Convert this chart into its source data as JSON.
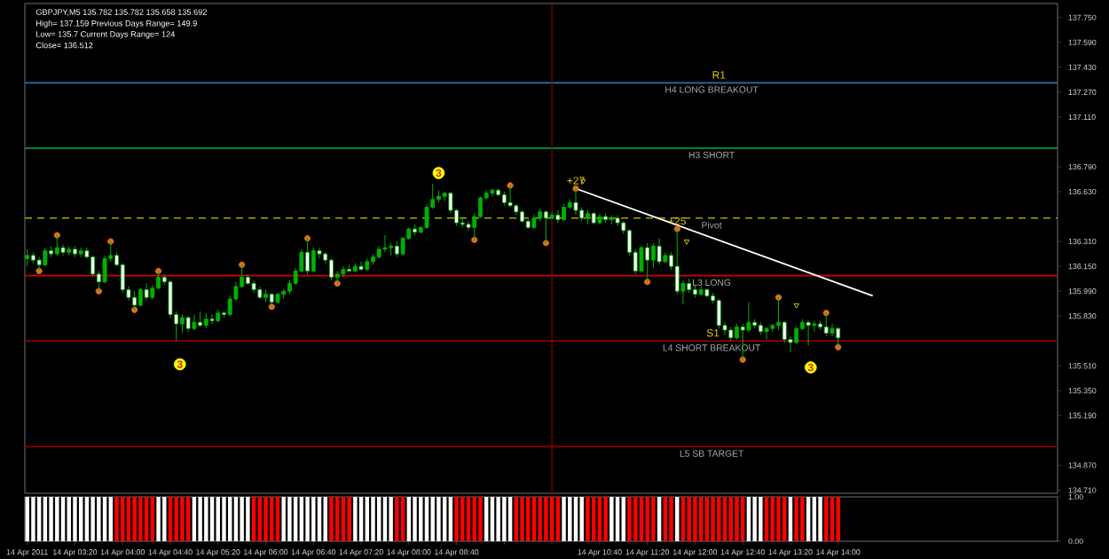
{
  "chart_data": [
    {
      "type": "candlestick",
      "color": "#00b000",
      "x": [
        "2011-04-14T02:40",
        "2011-04-14T02:45",
        "2011-04-14T02:50",
        "2011-04-14T02:55",
        "2011-04-14T03:00",
        "2011-04-14T03:05",
        "2011-04-14T03:10",
        "2011-04-14T03:15",
        "2011-04-14T03:20",
        "2011-04-14T03:25",
        "2011-04-14T03:30",
        "2011-04-14T03:35",
        "2011-04-14T03:40",
        "2011-04-14T03:45",
        "2011-04-14T03:50",
        "2011-04-14T03:55",
        "2011-04-14T04:00",
        "2011-04-14T04:05",
        "2011-04-14T04:10",
        "2011-04-14T04:15",
        "2011-04-14T04:20",
        "2011-04-14T04:25",
        "2011-04-14T04:30",
        "2011-04-14T04:35",
        "2011-04-14T04:40",
        "2011-04-14T04:45",
        "2011-04-14T04:50",
        "2011-04-14T04:55",
        "2011-04-14T05:00",
        "2011-04-14T05:05",
        "2011-04-14T05:10",
        "2011-04-14T05:15",
        "2011-04-14T05:20",
        "2011-04-14T05:25",
        "2011-04-14T05:30",
        "2011-04-14T05:35",
        "2011-04-14T05:40",
        "2011-04-14T05:45",
        "2011-04-14T05:50",
        "2011-04-14T05:55",
        "2011-04-14T06:00",
        "2011-04-14T06:05",
        "2011-04-14T06:10",
        "2011-04-14T06:15",
        "2011-04-14T06:20",
        "2011-04-14T06:25",
        "2011-04-14T06:30",
        "2011-04-14T06:35",
        "2011-04-14T06:40",
        "2011-04-14T06:45",
        "2011-04-14T06:50",
        "2011-04-14T06:55",
        "2011-04-14T07:00",
        "2011-04-14T07:05",
        "2011-04-14T07:10",
        "2011-04-14T07:15",
        "2011-04-14T07:20",
        "2011-04-14T07:25",
        "2011-04-14T07:30",
        "2011-04-14T07:35",
        "2011-04-14T07:40",
        "2011-04-14T07:45",
        "2011-04-14T07:50",
        "2011-04-14T07:55",
        "2011-04-14T08:00",
        "2011-04-14T08:05",
        "2011-04-14T08:10",
        "2011-04-14T08:15",
        "2011-04-14T08:20",
        "2011-04-14T08:25",
        "2011-04-14T08:30",
        "2011-04-14T08:35",
        "2011-04-14T08:40",
        "2011-04-14T08:45",
        "2011-04-14T08:50",
        "2011-04-14T08:55",
        "2011-04-14T09:00",
        "2011-04-14T09:05",
        "2011-04-14T09:10",
        "2011-04-14T09:15",
        "2011-04-14T09:20",
        "2011-04-14T09:25",
        "2011-04-14T09:30",
        "2011-04-14T09:35",
        "2011-04-14T09:40",
        "2011-04-14T09:45",
        "2011-04-14T09:50",
        "2011-04-14T09:55",
        "2011-04-14T10:00",
        "2011-04-14T10:05",
        "2011-04-14T10:10",
        "2011-04-14T10:15",
        "2011-04-14T10:20",
        "2011-04-14T10:25",
        "2011-04-14T10:30",
        "2011-04-14T10:35",
        "2011-04-14T10:40",
        "2011-04-14T10:45",
        "2011-04-14T10:50",
        "2011-04-14T10:55",
        "2011-04-14T11:00",
        "2011-04-14T11:05",
        "2011-04-14T11:10",
        "2011-04-14T11:15",
        "2011-04-14T11:20",
        "2011-04-14T11:25",
        "2011-04-14T11:30",
        "2011-04-14T11:35",
        "2011-04-14T11:40",
        "2011-04-14T11:45",
        "2011-04-14T11:50",
        "2011-04-14T11:55",
        "2011-04-14T12:00",
        "2011-04-14T12:05",
        "2011-04-14T12:10",
        "2011-04-14T12:15",
        "2011-04-14T12:20",
        "2011-04-14T12:25",
        "2011-04-14T12:30",
        "2011-04-14T12:35",
        "2011-04-14T12:40",
        "2011-04-14T12:45",
        "2011-04-14T12:50",
        "2011-04-14T12:55",
        "2011-04-14T13:00",
        "2011-04-14T13:05",
        "2011-04-14T13:10",
        "2011-04-14T13:15",
        "2011-04-14T13:20",
        "2011-04-14T13:25",
        "2011-04-14T13:30",
        "2011-04-14T13:35",
        "2011-04-14T13:40",
        "2011-04-14T13:45",
        "2011-04-14T13:50",
        "2011-04-14T13:55",
        "2011-04-14T14:00"
      ],
      "ohlc": [
        [
          136.2,
          136.26,
          136.15,
          136.22
        ],
        [
          136.22,
          136.24,
          136.17,
          136.19
        ],
        [
          136.19,
          136.21,
          136.12,
          136.16
        ],
        [
          136.16,
          136.27,
          136.15,
          136.25
        ],
        [
          136.25,
          136.28,
          136.21,
          136.23
        ],
        [
          136.23,
          136.35,
          136.22,
          136.27
        ],
        [
          136.27,
          136.29,
          136.22,
          136.24
        ],
        [
          136.24,
          136.28,
          136.22,
          136.26
        ],
        [
          136.26,
          136.28,
          136.21,
          136.23
        ],
        [
          136.23,
          136.27,
          136.21,
          136.25
        ],
        [
          136.25,
          136.27,
          136.2,
          136.21
        ],
        [
          136.21,
          136.22,
          136.08,
          136.1
        ],
        [
          136.1,
          136.12,
          135.99,
          136.05
        ],
        [
          136.05,
          136.22,
          136.04,
          136.2
        ],
        [
          136.2,
          136.31,
          136.18,
          136.22
        ],
        [
          136.22,
          136.24,
          136.15,
          136.16
        ],
        [
          136.16,
          136.17,
          135.98,
          136.0
        ],
        [
          136.0,
          136.02,
          135.93,
          135.95
        ],
        [
          135.95,
          135.99,
          135.87,
          135.9
        ],
        [
          135.9,
          136.01,
          135.89,
          136.0
        ],
        [
          136.0,
          136.04,
          135.93,
          135.95
        ],
        [
          135.95,
          136.03,
          135.94,
          136.01
        ],
        [
          136.01,
          136.12,
          136.0,
          136.08
        ],
        [
          136.08,
          136.1,
          136.03,
          136.05
        ],
        [
          136.05,
          136.06,
          135.82,
          135.84
        ],
        [
          135.84,
          135.86,
          135.67,
          135.78
        ],
        [
          135.78,
          135.84,
          135.72,
          135.82
        ],
        [
          135.82,
          135.83,
          135.73,
          135.75
        ],
        [
          135.75,
          135.84,
          135.74,
          135.79
        ],
        [
          135.79,
          135.86,
          135.76,
          135.77
        ],
        [
          135.77,
          135.85,
          135.75,
          135.81
        ],
        [
          135.81,
          135.84,
          135.78,
          135.8
        ],
        [
          135.8,
          135.87,
          135.79,
          135.85
        ],
        [
          135.85,
          135.86,
          135.82,
          135.84
        ],
        [
          135.84,
          135.96,
          135.83,
          135.94
        ],
        [
          135.94,
          136.05,
          135.93,
          136.02
        ],
        [
          136.02,
          136.16,
          136.01,
          136.08
        ],
        [
          136.08,
          136.1,
          136.03,
          136.04
        ],
        [
          136.04,
          136.06,
          135.98,
          136.0
        ],
        [
          136.0,
          136.02,
          135.94,
          135.95
        ],
        [
          135.95,
          136.0,
          135.92,
          135.97
        ],
        [
          135.97,
          135.98,
          135.89,
          135.92
        ],
        [
          135.92,
          135.98,
          135.91,
          135.97
        ],
        [
          135.97,
          136.0,
          135.94,
          135.99
        ],
        [
          135.99,
          136.06,
          135.97,
          136.04
        ],
        [
          136.04,
          136.14,
          136.03,
          136.12
        ],
        [
          136.12,
          136.26,
          136.11,
          136.24
        ],
        [
          136.24,
          136.33,
          136.1,
          136.12
        ],
        [
          136.12,
          136.27,
          136.11,
          136.25
        ],
        [
          136.25,
          136.27,
          136.2,
          136.23
        ],
        [
          136.23,
          136.24,
          136.17,
          136.19
        ],
        [
          136.19,
          136.2,
          136.06,
          136.08
        ],
        [
          136.08,
          136.12,
          136.04,
          136.1
        ],
        [
          136.1,
          136.15,
          136.08,
          136.13
        ],
        [
          136.13,
          136.16,
          136.11,
          136.12
        ],
        [
          136.12,
          136.17,
          136.11,
          136.15
        ],
        [
          136.15,
          136.18,
          136.12,
          136.13
        ],
        [
          136.13,
          136.2,
          136.12,
          136.18
        ],
        [
          136.18,
          136.23,
          136.16,
          136.21
        ],
        [
          136.21,
          136.28,
          136.2,
          136.26
        ],
        [
          136.26,
          136.35,
          136.24,
          136.27
        ],
        [
          136.27,
          136.3,
          136.22,
          136.28
        ],
        [
          136.28,
          136.31,
          136.21,
          136.23
        ],
        [
          136.23,
          136.34,
          136.22,
          136.33
        ],
        [
          136.33,
          136.4,
          136.32,
          136.39
        ],
        [
          136.39,
          136.42,
          136.35,
          136.37
        ],
        [
          136.37,
          136.41,
          136.36,
          136.4
        ],
        [
          136.4,
          136.55,
          136.39,
          136.53
        ],
        [
          136.53,
          136.68,
          136.52,
          136.58
        ],
        [
          136.58,
          136.64,
          136.56,
          136.6
        ],
        [
          136.6,
          136.63,
          136.57,
          136.62
        ],
        [
          136.62,
          136.63,
          136.49,
          136.51
        ],
        [
          136.51,
          136.52,
          136.41,
          136.43
        ],
        [
          136.43,
          136.46,
          136.4,
          136.42
        ],
        [
          136.42,
          136.44,
          136.38,
          136.4
        ],
        [
          136.4,
          136.49,
          136.32,
          136.47
        ],
        [
          136.47,
          136.6,
          136.46,
          136.59
        ],
        [
          136.59,
          136.64,
          136.58,
          136.62
        ],
        [
          136.62,
          136.65,
          136.6,
          136.64
        ],
        [
          136.64,
          136.65,
          136.6,
          136.61
        ],
        [
          136.61,
          136.63,
          136.54,
          136.56
        ],
        [
          136.56,
          136.67,
          136.53,
          136.54
        ],
        [
          136.54,
          136.55,
          136.48,
          136.5
        ],
        [
          136.5,
          136.51,
          136.43,
          136.44
        ],
        [
          136.44,
          136.45,
          136.39,
          136.4
        ],
        [
          136.4,
          136.48,
          136.39,
          136.46
        ],
        [
          136.46,
          136.52,
          136.44,
          136.5
        ],
        [
          136.5,
          136.51,
          136.3,
          136.46
        ],
        [
          136.46,
          136.5,
          136.45,
          136.48
        ],
        [
          136.48,
          136.51,
          136.43,
          136.45
        ],
        [
          136.45,
          136.55,
          136.44,
          136.53
        ],
        [
          136.53,
          136.58,
          136.52,
          136.56
        ],
        [
          136.56,
          136.65,
          136.48,
          136.51
        ],
        [
          136.51,
          136.53,
          136.44,
          136.46
        ],
        [
          136.46,
          136.51,
          136.42,
          136.49
        ],
        [
          136.49,
          136.5,
          136.42,
          136.43
        ],
        [
          136.43,
          136.49,
          136.42,
          136.47
        ],
        [
          136.47,
          136.49,
          136.43,
          136.45
        ],
        [
          136.45,
          136.48,
          136.42,
          136.46
        ],
        [
          136.46,
          136.48,
          136.41,
          136.43
        ],
        [
          136.43,
          136.44,
          136.36,
          136.38
        ],
        [
          136.38,
          136.39,
          136.22,
          136.24
        ],
        [
          136.24,
          136.26,
          136.1,
          136.12
        ],
        [
          136.12,
          136.28,
          136.11,
          136.27
        ],
        [
          136.27,
          136.3,
          136.05,
          136.19
        ],
        [
          136.19,
          136.3,
          136.14,
          136.28
        ],
        [
          136.28,
          136.33,
          136.16,
          136.18
        ],
        [
          136.18,
          136.24,
          136.17,
          136.22
        ],
        [
          136.22,
          136.24,
          136.13,
          136.15
        ],
        [
          136.15,
          136.39,
          135.97,
          135.99
        ],
        [
          135.99,
          136.06,
          135.91,
          136.04
        ],
        [
          136.04,
          136.07,
          135.98,
          136.0
        ],
        [
          136.0,
          136.03,
          135.95,
          135.97
        ],
        [
          135.97,
          136.02,
          135.96,
          136.0
        ],
        [
          136.0,
          136.01,
          135.95,
          135.96
        ],
        [
          135.96,
          135.98,
          135.91,
          135.93
        ],
        [
          135.93,
          135.94,
          135.75,
          135.77
        ],
        [
          135.77,
          135.79,
          135.71,
          135.74
        ],
        [
          135.74,
          135.76,
          135.67,
          135.69
        ],
        [
          135.69,
          135.78,
          135.68,
          135.76
        ],
        [
          135.76,
          135.78,
          135.55,
          135.74
        ],
        [
          135.74,
          135.92,
          135.73,
          135.79
        ],
        [
          135.79,
          135.81,
          135.75,
          135.77
        ],
        [
          135.77,
          135.79,
          135.71,
          135.73
        ],
        [
          135.73,
          135.76,
          135.68,
          135.75
        ],
        [
          135.75,
          135.78,
          135.73,
          135.77
        ],
        [
          135.77,
          135.95,
          135.74,
          135.79
        ],
        [
          135.79,
          135.8,
          135.66,
          135.68
        ],
        [
          135.68,
          135.7,
          135.6,
          135.66
        ],
        [
          135.66,
          135.76,
          135.65,
          135.75
        ],
        [
          135.75,
          135.81,
          135.74,
          135.79
        ],
        [
          135.79,
          135.8,
          135.64,
          135.77
        ],
        [
          135.77,
          135.8,
          135.73,
          135.78
        ],
        [
          135.78,
          135.8,
          135.74,
          135.76
        ],
        [
          135.76,
          135.85,
          135.7,
          135.72
        ],
        [
          135.72,
          135.78,
          135.7,
          135.75
        ],
        [
          135.75,
          135.76,
          135.63,
          135.69
        ]
      ],
      "series": [
        {
          "type": "scatter",
          "color": "#e0701c",
          "marker": "circle",
          "x": [
            "2011-04-14T02:50",
            "2011-04-14T03:05",
            "2011-04-14T03:40",
            "2011-04-14T03:50",
            "2011-04-14T04:10",
            "2011-04-14T04:30",
            "2011-04-14T05:40",
            "2011-04-14T06:05",
            "2011-04-14T06:35",
            "2011-04-14T07:00",
            "2011-04-14T08:55",
            "2011-04-14T09:25",
            "2011-04-14T09:55",
            "2011-04-14T10:20",
            "2011-04-14T11:20",
            "2011-04-14T11:45",
            "2011-04-14T12:40",
            "2011-04-14T13:10",
            "2011-04-14T13:50",
            "2011-04-14T14:00"
          ],
          "values": [
            136.12,
            136.35,
            135.99,
            136.31,
            135.87,
            136.12,
            136.16,
            135.89,
            136.33,
            136.04,
            136.32,
            136.67,
            136.3,
            136.65,
            136.05,
            136.39,
            135.55,
            135.95,
            135.85,
            135.63
          ]
        },
        {
          "type": "scatter",
          "color": "#ffff00",
          "marker": "circle",
          "x": [
            "2011-04-14T04:48",
            "2011-04-14T08:25",
            "2011-04-14T13:37"
          ],
          "values": [
            135.52,
            136.75,
            135.5
          ]
        },
        {
          "type": "scatter",
          "color": "#d8c000",
          "marker": "triangle",
          "x": [
            "2011-04-14T10:26",
            "2011-04-14T11:53",
            "2011-04-14T13:25"
          ],
          "values": [
            136.7,
            136.31,
            135.9
          ]
        },
        {
          "type": "line",
          "color": "#ffffff",
          "x": [
            "2011-04-14T10:20",
            "2011-04-14T14:29"
          ],
          "values": [
            136.65,
            135.96
          ]
        }
      ],
      "xlim": [
        "2011-04-14T02:38",
        "2011-04-14T17:04"
      ],
      "ylim": [
        134.69,
        137.84
      ],
      "yticks": [
        {
          "value": 137.75,
          "label": "137.750"
        },
        {
          "value": 137.59,
          "label": "137.590"
        },
        {
          "value": 137.43,
          "label": "137.430"
        },
        {
          "value": 137.27,
          "label": "137.270"
        },
        {
          "value": 137.11,
          "label": "137.110"
        },
        {
          "value": 136.79,
          "label": "136.790"
        },
        {
          "value": 136.63,
          "label": "136.630"
        },
        {
          "value": 136.31,
          "label": "136.310"
        },
        {
          "value": 136.15,
          "label": "136.150"
        },
        {
          "value": 135.99,
          "label": "135.990"
        },
        {
          "value": 135.83,
          "label": "135.830"
        },
        {
          "value": 135.51,
          "label": "135.510"
        },
        {
          "value": 135.35,
          "label": "135.350"
        },
        {
          "value": 135.19,
          "label": "135.190"
        },
        {
          "value": 134.87,
          "label": "134.870"
        },
        {
          "value": 134.71,
          "label": "134.710"
        }
      ],
      "tick_labels": "y",
      "ref_lines": [
        {
          "axis": "y",
          "value": 137.33,
          "label": "H4 LONG BREAKOUT",
          "color": "#2f6fa8"
        },
        {
          "axis": "y",
          "value": 136.91,
          "label": "H3 SHORT",
          "color": "#00b050"
        },
        {
          "axis": "y",
          "value": 136.46,
          "label": "Pivot",
          "color": "#b0a000",
          "line_style": "dashed"
        },
        {
          "axis": "y",
          "value": 136.09,
          "label": "L3 LONG",
          "color": "#d00000"
        },
        {
          "axis": "y",
          "value": 135.67,
          "label": "L4 SHORT BREAKOUT",
          "color": "#a00000"
        },
        {
          "axis": "y",
          "value": 134.99,
          "label": "L5 SB TARGET",
          "color": "#900000"
        },
        {
          "axis": "x",
          "value": "2011-04-14T10:00",
          "color": "#800000"
        }
      ],
      "annotations": [
        "GBPJPY,M5  135.782 135.782 135.658 135.692",
        "High= 137.159   Previous Days Range= 149.9",
        "Low= 135.7   Current Days Range= 124",
        "Close= 136.512",
        {
          "text": "R1",
          "x": "2011-04-14T12:20",
          "y": 137.33
        },
        {
          "text": "S1",
          "x": "2011-04-14T12:15",
          "y": 135.67
        },
        {
          "text": "+27",
          "x": "2011-04-14T10:20",
          "y": 136.65
        },
        {
          "text": "+25",
          "x": "2011-04-14T11:45",
          "y": 136.39
        },
        {
          "text": "3",
          "x": "2011-04-14T04:48",
          "y": 135.52
        },
        {
          "text": "3",
          "x": "2011-04-14T08:25",
          "y": 136.75
        },
        {
          "text": "3",
          "x": "2011-04-14T13:37",
          "y": 135.5
        }
      ]
    },
    {
      "type": "bar",
      "x": [
        "2011-04-14T02:40",
        "2011-04-14T02:45",
        "2011-04-14T02:50",
        "2011-04-14T02:55",
        "2011-04-14T03:00",
        "2011-04-14T03:05",
        "2011-04-14T03:10",
        "2011-04-14T03:15",
        "2011-04-14T03:20",
        "2011-04-14T03:25",
        "2011-04-14T03:30",
        "2011-04-14T03:35",
        "2011-04-14T03:40",
        "2011-04-14T03:45",
        "2011-04-14T03:50",
        "2011-04-14T03:55",
        "2011-04-14T04:00",
        "2011-04-14T04:05",
        "2011-04-14T04:10",
        "2011-04-14T04:15",
        "2011-04-14T04:20",
        "2011-04-14T04:25",
        "2011-04-14T04:30",
        "2011-04-14T04:35",
        "2011-04-14T04:40",
        "2011-04-14T04:45",
        "2011-04-14T04:50",
        "2011-04-14T04:55",
        "2011-04-14T05:00",
        "2011-04-14T05:05",
        "2011-04-14T05:10",
        "2011-04-14T05:15",
        "2011-04-14T05:20",
        "2011-04-14T05:25",
        "2011-04-14T05:30",
        "2011-04-14T05:35",
        "2011-04-14T05:40",
        "2011-04-14T05:45",
        "2011-04-14T05:50",
        "2011-04-14T05:55",
        "2011-04-14T06:00",
        "2011-04-14T06:05",
        "2011-04-14T06:10",
        "2011-04-14T06:15",
        "2011-04-14T06:20",
        "2011-04-14T06:25",
        "2011-04-14T06:30",
        "2011-04-14T06:35",
        "2011-04-14T06:40",
        "2011-04-14T06:45",
        "2011-04-14T06:50",
        "2011-04-14T06:55",
        "2011-04-14T07:00",
        "2011-04-14T07:05",
        "2011-04-14T07:10",
        "2011-04-14T07:15",
        "2011-04-14T07:20",
        "2011-04-14T07:25",
        "2011-04-14T07:30",
        "2011-04-14T07:35",
        "2011-04-14T07:40",
        "2011-04-14T07:45",
        "2011-04-14T07:50",
        "2011-04-14T07:55",
        "2011-04-14T08:00",
        "2011-04-14T08:05",
        "2011-04-14T08:10",
        "2011-04-14T08:15",
        "2011-04-14T08:20",
        "2011-04-14T08:25",
        "2011-04-14T08:30",
        "2011-04-14T08:35",
        "2011-04-14T08:40",
        "2011-04-14T08:45",
        "2011-04-14T08:50",
        "2011-04-14T08:55",
        "2011-04-14T09:00",
        "2011-04-14T09:05",
        "2011-04-14T09:10",
        "2011-04-14T09:15",
        "2011-04-14T09:20",
        "2011-04-14T09:25",
        "2011-04-14T09:30",
        "2011-04-14T09:35",
        "2011-04-14T09:40",
        "2011-04-14T09:45",
        "2011-04-14T09:50",
        "2011-04-14T09:55",
        "2011-04-14T10:00",
        "2011-04-14T10:05",
        "2011-04-14T10:10",
        "2011-04-14T10:15",
        "2011-04-14T10:20",
        "2011-04-14T10:25",
        "2011-04-14T10:30",
        "2011-04-14T10:35",
        "2011-04-14T10:40",
        "2011-04-14T10:45",
        "2011-04-14T10:50",
        "2011-04-14T10:55",
        "2011-04-14T11:00",
        "2011-04-14T11:05",
        "2011-04-14T11:10",
        "2011-04-14T11:15",
        "2011-04-14T11:20",
        "2011-04-14T11:25",
        "2011-04-14T11:30",
        "2011-04-14T11:35",
        "2011-04-14T11:40",
        "2011-04-14T11:45",
        "2011-04-14T11:50",
        "2011-04-14T11:55",
        "2011-04-14T12:00",
        "2011-04-14T12:05",
        "2011-04-14T12:10",
        "2011-04-14T12:15",
        "2011-04-14T12:20",
        "2011-04-14T12:25",
        "2011-04-14T12:30",
        "2011-04-14T12:35",
        "2011-04-14T12:40",
        "2011-04-14T12:45",
        "2011-04-14T12:50",
        "2011-04-14T12:55",
        "2011-04-14T13:00",
        "2011-04-14T13:05",
        "2011-04-14T13:10",
        "2011-04-14T13:15",
        "2011-04-14T13:20",
        "2011-04-14T13:25",
        "2011-04-14T13:30",
        "2011-04-14T13:35",
        "2011-04-14T13:40",
        "2011-04-14T13:45",
        "2011-04-14T13:50",
        "2011-04-14T13:55",
        "2011-04-14T14:00"
      ],
      "values": [
        1,
        1,
        1,
        1,
        1,
        1,
        1,
        1,
        1,
        1,
        1,
        1,
        1,
        1,
        1,
        1,
        1,
        1,
        1,
        1,
        1,
        1,
        1,
        1,
        1,
        1,
        1,
        1,
        1,
        1,
        1,
        1,
        1,
        1,
        1,
        1,
        1,
        1,
        1,
        1,
        1,
        1,
        1,
        1,
        1,
        1,
        1,
        1,
        1,
        1,
        1,
        1,
        1,
        1,
        1,
        1,
        1,
        1,
        1,
        1,
        1,
        1,
        1,
        1,
        1,
        1,
        1,
        1,
        1,
        1,
        1,
        1,
        1,
        1,
        1,
        1,
        1,
        1,
        1,
        1,
        1,
        1,
        1,
        1,
        1,
        1,
        1,
        1,
        1,
        1,
        1,
        1,
        1,
        1,
        1,
        1,
        1,
        1,
        1,
        1,
        1,
        1,
        1,
        1,
        1,
        1,
        1,
        1,
        1,
        1,
        1,
        1,
        1,
        1,
        1,
        1,
        1,
        1,
        1,
        1,
        1,
        1,
        1,
        1,
        1,
        1,
        1,
        1,
        1,
        1,
        1,
        1,
        1,
        1,
        1,
        1,
        1
      ],
      "colors": [
        "#ffffff",
        "#ffffff",
        "#ffffff",
        "#ffffff",
        "#ffffff",
        "#ffffff",
        "#ffffff",
        "#ffffff",
        "#ffffff",
        "#ffffff",
        "#ffffff",
        "#ffffff",
        "#ffffff",
        "#ffffff",
        "#ffffff",
        "#ff0000",
        "#ff0000",
        "#ff0000",
        "#ff0000",
        "#ff0000",
        "#ff0000",
        "#ff0000",
        "#ffffff",
        "#ffffff",
        "#ff0000",
        "#ff0000",
        "#ff0000",
        "#ff0000",
        "#ffffff",
        "#ffffff",
        "#ffffff",
        "#ffffff",
        "#ffffff",
        "#ffffff",
        "#ffffff",
        "#ffffff",
        "#ffffff",
        "#ffffff",
        "#ff0000",
        "#ff0000",
        "#ff0000",
        "#ff0000",
        "#ff0000",
        "#ffffff",
        "#ffffff",
        "#ffffff",
        "#ffffff",
        "#ffffff",
        "#ffffff",
        "#ffffff",
        "#ffffff",
        "#ff0000",
        "#ff0000",
        "#ff0000",
        "#ff0000",
        "#ffffff",
        "#ffffff",
        "#ffffff",
        "#ffffff",
        "#ffffff",
        "#ffffff",
        "#ffffff",
        "#ff0000",
        "#ff0000",
        "#ffffff",
        "#ffffff",
        "#ffffff",
        "#ffffff",
        "#ffffff",
        "#ffffff",
        "#ffffff",
        "#ffffff",
        "#ff0000",
        "#ff0000",
        "#ff0000",
        "#ff0000",
        "#ff0000",
        "#ffffff",
        "#ffffff",
        "#ffffff",
        "#ffffff",
        "#ffffff",
        "#ff0000",
        "#ff0000",
        "#ff0000",
        "#ff0000",
        "#ff0000",
        "#ff0000",
        "#ff0000",
        "#ff0000",
        "#ffffff",
        "#ffffff",
        "#ffffff",
        "#ffffff",
        "#ff0000",
        "#ff0000",
        "#ff0000",
        "#ff0000",
        "#ffffff",
        "#ffffff",
        "#ffffff",
        "#ff0000",
        "#ff0000",
        "#ff0000",
        "#ff0000",
        "#ff0000",
        "#ffffff",
        "#ff0000",
        "#ff0000",
        "#ffffff",
        "#ff0000",
        "#ff0000",
        "#ff0000",
        "#ff0000",
        "#ff0000",
        "#ff0000",
        "#ff0000",
        "#ff0000",
        "#ff0000",
        "#ff0000",
        "#ff0000",
        "#ffffff",
        "#ffffff",
        "#ffffff",
        "#ff0000",
        "#ff0000",
        "#ff0000",
        "#ff0000",
        "#ffffff",
        "#ff0000",
        "#ff0000",
        "#ffffff",
        "#ffffff",
        "#ffffff",
        "#ff0000",
        "#ff0000",
        "#ff0000"
      ],
      "xlim": [
        "2011-04-14T02:38",
        "2011-04-14T17:04"
      ],
      "ylim": [
        0,
        1
      ],
      "yticks": [
        {
          "value": 1,
          "label": "1.00"
        },
        {
          "value": 0,
          "label": "0.00"
        }
      ],
      "xticks": [
        {
          "value": "2011-04-14T02:40",
          "label": "14 Apr 2011"
        },
        {
          "value": "2011-04-14T03:20",
          "label": "14 Apr 03:20"
        },
        {
          "value": "2011-04-14T04:00",
          "label": "14 Apr 04:00"
        },
        {
          "value": "2011-04-14T04:40",
          "label": "14 Apr 04:40"
        },
        {
          "value": "2011-04-14T05:20",
          "label": "14 Apr 05:20"
        },
        {
          "value": "2011-04-14T06:00",
          "label": "14 Apr 06:00"
        },
        {
          "value": "2011-04-14T06:40",
          "label": "14 Apr 06:40"
        },
        {
          "value": "2011-04-14T07:20",
          "label": "14 Apr 07:20"
        },
        {
          "value": "2011-04-14T08:00",
          "label": "14 Apr 08:00"
        },
        {
          "value": "2011-04-14T08:40",
          "label": "14 Apr 08:40"
        },
        {
          "value": "2011-04-14T09:20",
          "label": null
        },
        {
          "value": "2011-04-14T10:00",
          "label": null
        },
        {
          "value": "2011-04-14T10:40",
          "label": "14 Apr 10:40"
        },
        {
          "value": "2011-04-14T11:20",
          "label": "14 Apr 11:20"
        },
        {
          "value": "2011-04-14T12:00",
          "label": "14 Apr 12:00"
        },
        {
          "value": "2011-04-14T12:40",
          "label": "14 Apr 12:40"
        },
        {
          "value": "2011-04-14T13:20",
          "label": "14 Apr 13:20"
        },
        {
          "value": "2011-04-14T14:00",
          "label": "14 Apr 14:00"
        }
      ]
    }
  ]
}
